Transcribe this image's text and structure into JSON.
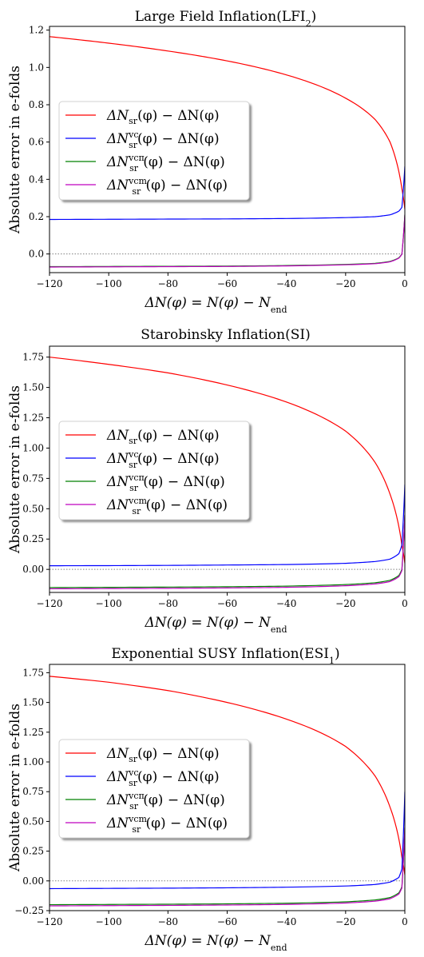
{
  "charts": [
    {
      "title": "Large Field Inflation(LFI",
      "title_sub": "2",
      "ylabel": "Absolute error in e-folds",
      "xlabel": "ΔN(φ) = N(φ) − N",
      "xlabel_sub": "end",
      "xlim": [
        -120,
        0
      ],
      "ylim": [
        -0.1,
        1.22
      ],
      "yticks": [
        0.0,
        0.2,
        0.4,
        0.6,
        0.8,
        1.0,
        1.2
      ],
      "ytick_labels": [
        "0.0",
        "0.2",
        "0.4",
        "0.6",
        "0.8",
        "1.0",
        "1.2"
      ],
      "xticks": [
        -120,
        -100,
        -80,
        -60,
        -40,
        -20,
        0
      ],
      "xtick_labels": [
        "−120",
        "−100",
        "−80",
        "−60",
        "−40",
        "−20",
        "0"
      ]
    },
    {
      "title": "Starobinsky Inflation(SI)",
      "title_sub": "",
      "ylabel": "Absolute error in e-folds",
      "xlabel": "ΔN(φ) = N(φ) − N",
      "xlabel_sub": "end",
      "xlim": [
        -120,
        0
      ],
      "ylim": [
        -0.19,
        1.84
      ],
      "yticks": [
        0.0,
        0.25,
        0.5,
        0.75,
        1.0,
        1.25,
        1.5,
        1.75
      ],
      "ytick_labels": [
        "0.00",
        "0.25",
        "0.50",
        "0.75",
        "1.00",
        "1.25",
        "1.50",
        "1.75"
      ],
      "xticks": [
        -120,
        -100,
        -80,
        -60,
        -40,
        -20,
        0
      ],
      "xtick_labels": [
        "−120",
        "−100",
        "−80",
        "−60",
        "−40",
        "−20",
        "0"
      ]
    },
    {
      "title": "Exponential SUSY Inflation(ESI",
      "title_sub": "1",
      "ylabel": "Absolute error in e-folds",
      "xlabel": "ΔN(φ) = N(φ) − N",
      "xlabel_sub": "end",
      "xlim": [
        -120,
        0
      ],
      "ylim": [
        -0.25,
        1.82
      ],
      "yticks": [
        -0.25,
        0.0,
        0.25,
        0.5,
        0.75,
        1.0,
        1.25,
        1.5,
        1.75
      ],
      "ytick_labels": [
        "−0.25",
        "0.00",
        "0.25",
        "0.50",
        "0.75",
        "1.00",
        "1.25",
        "1.50",
        "1.75"
      ],
      "xticks": [
        -120,
        -100,
        -80,
        -60,
        -40,
        -20,
        0
      ],
      "xtick_labels": [
        "−120",
        "−100",
        "−80",
        "−60",
        "−40",
        "−20",
        "0"
      ]
    }
  ],
  "legend": [
    {
      "main": "ΔN",
      "sub": "sr",
      "sup": "",
      "rest": "(φ) − ΔN(φ)",
      "color": "#ff0000"
    },
    {
      "main": "ΔN",
      "sub": "sr",
      "sup": "vc",
      "rest": "(φ) − ΔN(φ)",
      "color": "#0000ff"
    },
    {
      "main": "ΔN",
      "sub": "sr",
      "sup": "vcπ",
      "rest": "(φ) − ΔN(φ)",
      "color": "#008000"
    },
    {
      "main": "ΔN",
      "sub": "sr",
      "sup": "vcm",
      "rest": "(φ) − ΔN(φ)",
      "color": "#bf00bf"
    }
  ],
  "chart_data": [
    {
      "type": "line",
      "x": [
        -120,
        -100,
        -80,
        -60,
        -40,
        -20,
        -10,
        -5,
        -2,
        -1,
        0
      ],
      "series": [
        {
          "name": "ΔN_sr(φ) − ΔN(φ)",
          "color": "#ff0000",
          "values": [
            1.165,
            1.13,
            1.088,
            1.035,
            0.96,
            0.835,
            0.72,
            0.6,
            0.44,
            0.35,
            0.24
          ]
        },
        {
          "name": "ΔN_sr^vc(φ) − ΔN(φ)",
          "color": "#0000ff",
          "values": [
            0.185,
            0.186,
            0.187,
            0.188,
            0.19,
            0.195,
            0.2,
            0.21,
            0.23,
            0.25,
            0.47
          ]
        },
        {
          "name": "ΔN_sr^vcπ(φ) − ΔN(φ)",
          "color": "#008000",
          "values": [
            -0.068,
            -0.067,
            -0.066,
            -0.065,
            -0.062,
            -0.056,
            -0.05,
            -0.04,
            -0.02,
            0.0,
            0.21
          ]
        },
        {
          "name": "ΔN_sr^vcm(φ) − ΔN(φ)",
          "color": "#bf00bf",
          "values": [
            -0.07,
            -0.069,
            -0.068,
            -0.067,
            -0.064,
            -0.058,
            -0.052,
            -0.042,
            -0.022,
            -0.002,
            0.21
          ]
        }
      ],
      "hline": 0.0
    },
    {
      "type": "line",
      "x": [
        -120,
        -100,
        -80,
        -60,
        -40,
        -20,
        -10,
        -5,
        -2,
        -1,
        0
      ],
      "series": [
        {
          "name": "ΔN_sr(φ) − ΔN(φ)",
          "color": "#ff0000",
          "values": [
            1.75,
            1.69,
            1.62,
            1.52,
            1.38,
            1.14,
            0.88,
            0.62,
            0.35,
            0.2,
            0.05
          ]
        },
        {
          "name": "ΔN_sr^vc(φ) − ΔN(φ)",
          "color": "#0000ff",
          "values": [
            0.03,
            0.031,
            0.033,
            0.036,
            0.04,
            0.05,
            0.065,
            0.085,
            0.13,
            0.2,
            0.7
          ]
        },
        {
          "name": "ΔN_sr^vcπ(φ) − ΔN(φ)",
          "color": "#008000",
          "values": [
            -0.15,
            -0.148,
            -0.146,
            -0.143,
            -0.138,
            -0.125,
            -0.11,
            -0.09,
            -0.05,
            0.0,
            0.45
          ]
        },
        {
          "name": "ΔN_sr^vcm(φ) − ΔN(φ)",
          "color": "#bf00bf",
          "values": [
            -0.16,
            -0.158,
            -0.156,
            -0.153,
            -0.148,
            -0.135,
            -0.12,
            -0.1,
            -0.06,
            -0.01,
            0.45
          ]
        }
      ],
      "hline": 0.0
    },
    {
      "type": "line",
      "x": [
        -120,
        -100,
        -80,
        -60,
        -40,
        -20,
        -10,
        -5,
        -2,
        -1,
        0
      ],
      "series": [
        {
          "name": "ΔN_sr(φ) − ΔN(φ)",
          "color": "#ff0000",
          "values": [
            1.72,
            1.67,
            1.6,
            1.5,
            1.36,
            1.13,
            0.88,
            0.62,
            0.35,
            0.2,
            0.05
          ]
        },
        {
          "name": "ΔN_sr^vc(φ) − ΔN(φ)",
          "color": "#0000ff",
          "values": [
            -0.065,
            -0.063,
            -0.061,
            -0.058,
            -0.053,
            -0.043,
            -0.03,
            -0.01,
            0.03,
            0.1,
            0.75
          ]
        },
        {
          "name": "ΔN_sr^vcπ(φ) − ΔN(φ)",
          "color": "#008000",
          "values": [
            -0.2,
            -0.198,
            -0.196,
            -0.193,
            -0.188,
            -0.176,
            -0.16,
            -0.14,
            -0.1,
            -0.05,
            0.45
          ]
        },
        {
          "name": "ΔN_sr^vcm(φ) − ΔN(φ)",
          "color": "#bf00bf",
          "values": [
            -0.21,
            -0.208,
            -0.206,
            -0.203,
            -0.198,
            -0.186,
            -0.17,
            -0.15,
            -0.11,
            -0.06,
            0.45
          ]
        }
      ],
      "hline": 0.0
    }
  ]
}
